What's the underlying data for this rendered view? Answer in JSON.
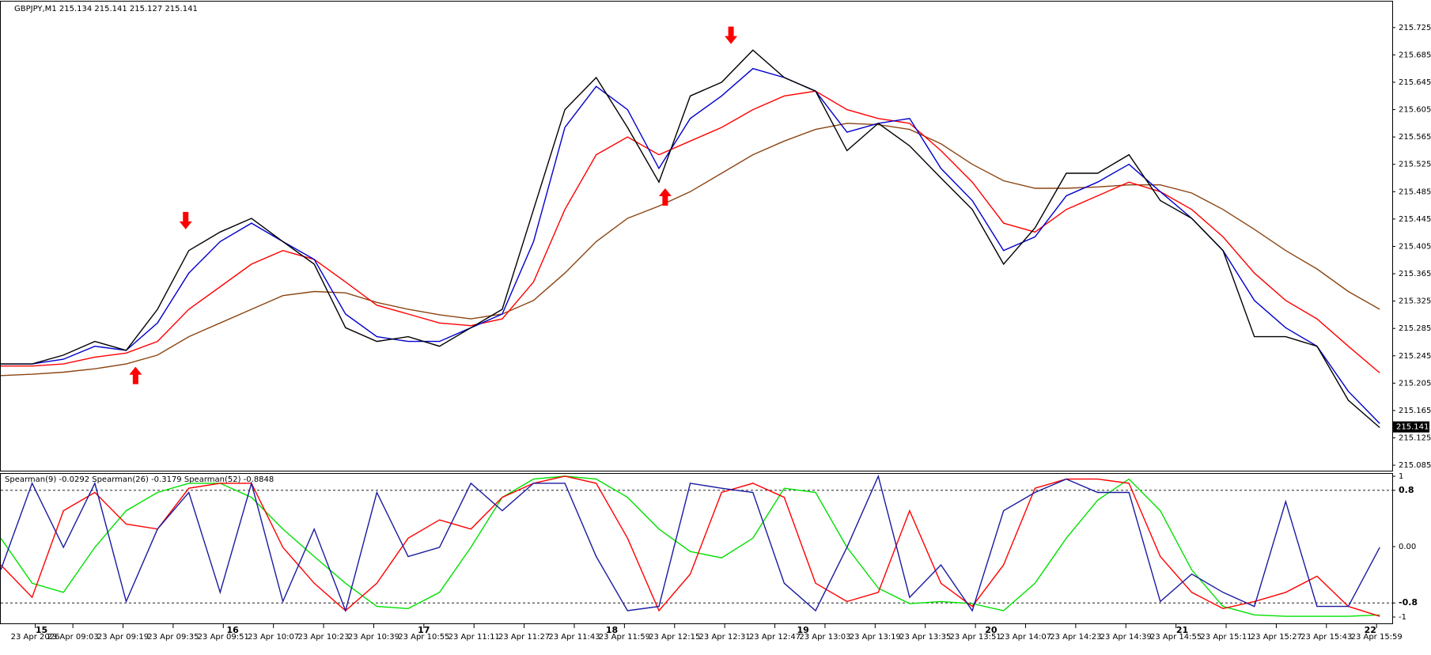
{
  "chart_data": [
    {
      "type": "line",
      "title": "GBPJPY,M1  215.134 215.141 215.127 215.141",
      "x": [
        0,
        10,
        20,
        30,
        40,
        50,
        60,
        70,
        80,
        90,
        100,
        110,
        120,
        130,
        140,
        150,
        160,
        170,
        180,
        190,
        200,
        210,
        220,
        230,
        240,
        250,
        260,
        270,
        280,
        290,
        300,
        310,
        320,
        330,
        340,
        350,
        360,
        370,
        380,
        390,
        400,
        410,
        420,
        430,
        440
      ],
      "xlim": [
        0,
        444
      ],
      "ylim": [
        215.077,
        215.763
      ],
      "yticks": [
        215.085,
        215.125,
        215.165,
        215.205,
        215.245,
        215.285,
        215.325,
        215.365,
        215.405,
        215.445,
        215.485,
        215.525,
        215.565,
        215.605,
        215.645,
        215.685,
        215.725
      ],
      "series": [
        {
          "color": "#8b4513",
          "values": [
            215.216,
            215.218,
            215.221,
            215.226,
            215.233,
            215.246,
            215.273,
            215.293,
            215.313,
            215.333,
            215.339,
            215.337,
            215.323,
            215.313,
            215.305,
            215.299,
            215.306,
            215.326,
            215.366,
            215.412,
            215.446,
            215.464,
            215.485,
            215.512,
            215.539,
            215.559,
            215.576,
            215.585,
            215.583,
            215.576,
            215.555,
            215.525,
            215.501,
            215.49,
            215.49,
            215.492,
            215.495,
            215.495,
            215.483,
            215.459,
            215.43,
            215.399,
            215.372,
            215.339,
            215.313
          ]
        },
        {
          "color": "#ff0000",
          "values": [
            215.23,
            215.23,
            215.233,
            215.243,
            215.249,
            215.266,
            215.313,
            215.346,
            215.379,
            215.399,
            215.386,
            215.353,
            215.319,
            215.306,
            215.293,
            215.289,
            215.299,
            215.353,
            215.459,
            215.539,
            215.565,
            215.539,
            215.559,
            215.579,
            215.605,
            215.625,
            215.632,
            215.605,
            215.592,
            215.585,
            215.545,
            215.499,
            215.439,
            215.426,
            215.459,
            215.479,
            215.499,
            215.485,
            215.459,
            215.419,
            215.366,
            215.326,
            215.299,
            215.259,
            215.22
          ]
        },
        {
          "color": "#0000cd",
          "values": [
            215.233,
            215.233,
            215.24,
            215.259,
            215.253,
            215.293,
            215.366,
            215.412,
            215.439,
            215.412,
            215.386,
            215.306,
            215.273,
            215.266,
            215.266,
            215.286,
            215.306,
            215.412,
            215.579,
            215.639,
            215.605,
            215.519,
            215.592,
            215.625,
            215.665,
            215.652,
            215.632,
            215.572,
            215.585,
            215.592,
            215.519,
            215.472,
            215.399,
            215.419,
            215.479,
            215.499,
            215.525,
            215.485,
            215.446,
            215.399,
            215.326,
            215.286,
            215.259,
            215.193,
            215.146
          ]
        },
        {
          "color": "#000000",
          "values": [
            215.233,
            215.233,
            215.246,
            215.266,
            215.253,
            215.313,
            215.399,
            215.426,
            215.446,
            215.412,
            215.379,
            215.286,
            215.266,
            215.273,
            215.259,
            215.286,
            215.313,
            215.459,
            215.605,
            215.652,
            215.579,
            215.499,
            215.625,
            215.645,
            215.692,
            215.652,
            215.632,
            215.545,
            215.585,
            215.552,
            215.505,
            215.459,
            215.379,
            215.432,
            215.512,
            215.512,
            215.539,
            215.472,
            215.446,
            215.399,
            215.273,
            215.273,
            215.259,
            215.18,
            215.14
          ]
        }
      ],
      "signals": [
        {
          "x": 59,
          "y": 215.43,
          "direction": "down"
        },
        {
          "x": 233,
          "y": 215.701,
          "direction": "down"
        },
        {
          "x": 43,
          "y": 215.229,
          "direction": "up"
        },
        {
          "x": 212,
          "y": 215.49,
          "direction": "up"
        }
      ],
      "signal_color": "#ff0000",
      "last_price": 215.141,
      "grid": false
    },
    {
      "type": "line",
      "title": "Spearman(9) -0.0292  Spearman(26) -0.3179  Spearman(52) -0.8848",
      "x": [
        0,
        10,
        20,
        30,
        40,
        50,
        60,
        70,
        80,
        90,
        100,
        110,
        120,
        130,
        140,
        150,
        160,
        170,
        180,
        190,
        200,
        210,
        220,
        230,
        240,
        250,
        260,
        270,
        280,
        290,
        300,
        310,
        320,
        330,
        340,
        350,
        360,
        370,
        380,
        390,
        400,
        410,
        420,
        430,
        440
      ],
      "xlim": [
        0,
        444
      ],
      "ylim": [
        -1.09,
        1.034
      ],
      "yticks": [
        1,
        0.8,
        {
          "value": 0,
          "label": "0.00"
        },
        -0.8,
        -1
      ],
      "levels": [
        0.8,
        -0.8
      ],
      "xticks": [
        {
          "value": 11,
          "label": "23 Apr 2026"
        },
        {
          "value": 23,
          "label": "23 Apr 09:03"
        },
        {
          "value": 39,
          "label": "23 Apr 09:19"
        },
        {
          "value": 55,
          "label": "23 Apr 09:35"
        },
        {
          "value": 71,
          "label": "23 Apr 09:51"
        },
        {
          "value": 87,
          "label": "23 Apr 10:07"
        },
        {
          "value": 103,
          "label": "23 Apr 10:23"
        },
        {
          "value": 119,
          "label": "23 Apr 10:39"
        },
        {
          "value": 135,
          "label": "23 Apr 10:55"
        },
        {
          "value": 151,
          "label": "23 Apr 11:11"
        },
        {
          "value": 167,
          "label": "23 Apr 11:27"
        },
        {
          "value": 183,
          "label": "23 Apr 11:43"
        },
        {
          "value": 199,
          "label": "23 Apr 11:59"
        },
        {
          "value": 215,
          "label": "23 Apr 12:15"
        },
        {
          "value": 231,
          "label": "23 Apr 12:31"
        },
        {
          "value": 247,
          "label": "23 Apr 12:47"
        },
        {
          "value": 263,
          "label": "23 Apr 13:03"
        },
        {
          "value": 279,
          "label": "23 Apr 13:19"
        },
        {
          "value": 295,
          "label": "23 Apr 13:35"
        },
        {
          "value": 311,
          "label": "23 Apr 13:51"
        },
        {
          "value": 327,
          "label": "23 Apr 14:07"
        },
        {
          "value": 343,
          "label": "23 Apr 14:23"
        },
        {
          "value": 359,
          "label": "23 Apr 14:39"
        },
        {
          "value": 375,
          "label": "23 Apr 14:55"
        },
        {
          "value": 391,
          "label": "23 Apr 15:11"
        },
        {
          "value": 407,
          "label": "23 Apr 15:27"
        },
        {
          "value": 423,
          "label": "23 Apr 15:43"
        },
        {
          "value": 439,
          "label": "23 Apr 15:59"
        }
      ],
      "day_markers": [
        {
          "x": 13,
          "label": "15"
        },
        {
          "x": 74,
          "label": "16"
        },
        {
          "x": 135,
          "label": "17"
        },
        {
          "x": 195,
          "label": "18"
        },
        {
          "x": 256,
          "label": "19"
        },
        {
          "x": 316,
          "label": "20"
        },
        {
          "x": 377,
          "label": "21"
        },
        {
          "x": 437,
          "label": "22"
        }
      ],
      "series": [
        {
          "color": "#00e000",
          "values": [
            0.12,
            -0.52,
            -0.65,
            -0.01,
            0.51,
            0.77,
            0.9,
            0.9,
            0.7,
            0.25,
            -0.14,
            -0.52,
            -0.85,
            -0.88,
            -0.65,
            -0.01,
            0.7,
            0.96,
            1.0,
            0.96,
            0.7,
            0.25,
            -0.07,
            -0.16,
            0.12,
            0.83,
            0.77,
            -0.01,
            -0.59,
            -0.81,
            -0.78,
            -0.81,
            -0.91,
            -0.52,
            0.12,
            0.66,
            0.96,
            0.51,
            -0.33,
            -0.85,
            -0.97,
            -0.99,
            -0.99,
            -0.99,
            -0.97
          ]
        },
        {
          "color": "#ff0000",
          "values": [
            -0.26,
            -0.72,
            0.51,
            0.77,
            0.32,
            0.25,
            0.83,
            0.9,
            0.9,
            -0.01,
            -0.52,
            -0.91,
            -0.52,
            0.12,
            0.38,
            0.25,
            0.7,
            0.9,
            1.0,
            0.9,
            0.12,
            -0.91,
            -0.39,
            0.77,
            0.9,
            0.7,
            -0.52,
            -0.78,
            -0.65,
            0.51,
            -0.52,
            -0.85,
            -0.26,
            0.83,
            0.96,
            0.96,
            0.9,
            -0.14,
            -0.65,
            -0.88,
            -0.78,
            -0.65,
            -0.42,
            -0.85,
            -0.99
          ]
        },
        {
          "color": "#1a1aa0",
          "values": [
            -0.33,
            0.9,
            -0.01,
            0.9,
            -0.78,
            0.25,
            0.77,
            -0.65,
            0.9,
            -0.78,
            0.25,
            -0.91,
            0.77,
            -0.14,
            -0.01,
            0.9,
            0.51,
            0.9,
            0.9,
            -0.14,
            -0.91,
            -0.85,
            0.9,
            0.83,
            0.77,
            -0.52,
            -0.91,
            -0.01,
            1.0,
            -0.72,
            -0.26,
            -0.91,
            0.51,
            0.77,
            0.96,
            0.77,
            0.77,
            -0.78,
            -0.39,
            -0.65,
            -0.85,
            0.64,
            -0.85,
            -0.85,
            -0.01
          ]
        }
      ],
      "grid": false
    }
  ]
}
